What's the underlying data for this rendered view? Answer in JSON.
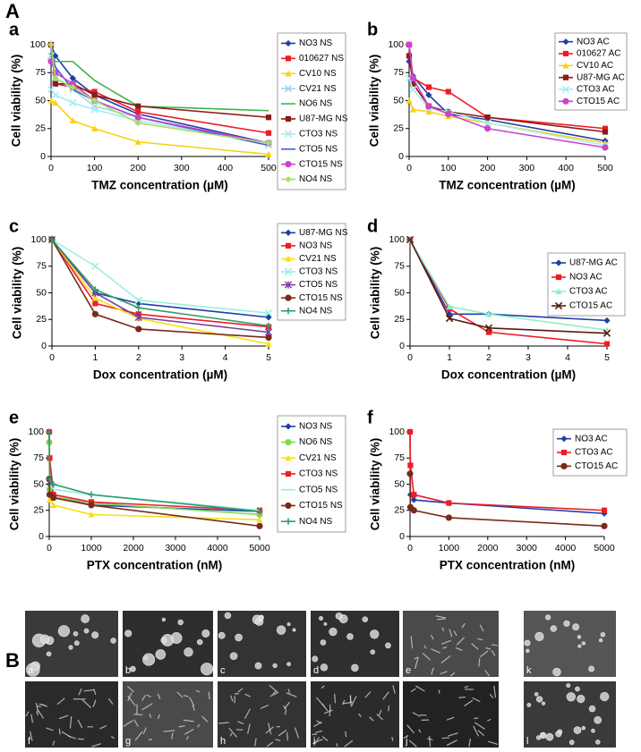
{
  "figure": {
    "label_top": "A",
    "label_bottom": "B",
    "tiles": [
      "a",
      "b",
      "c",
      "d",
      "e",
      "k",
      "f",
      "g",
      "h",
      "i",
      "j",
      "l"
    ]
  },
  "chart_data": [
    {
      "type": "line",
      "panel": "a",
      "xlabel": "TMZ concentration (µM)",
      "ylabel": "Cell viability (%)",
      "x": [
        0,
        10,
        50,
        100,
        200,
        500
      ],
      "xlim": [
        0,
        500
      ],
      "xticks": [
        0,
        100,
        200,
        300,
        400,
        500
      ],
      "ylim": [
        0,
        100
      ],
      "yticks": [
        0,
        25,
        50,
        75,
        100
      ],
      "series": [
        {
          "name": "NO3 NS",
          "color": "#1f3ea8",
          "marker": "diamond",
          "values": [
            100,
            90,
            70,
            55,
            38,
            12
          ]
        },
        {
          "name": "010627 NS",
          "color": "#ee1c25",
          "marker": "square",
          "values": [
            100,
            65,
            62,
            58,
            40,
            21
          ]
        },
        {
          "name": "CV10 NS",
          "color": "#f7d117",
          "marker": "triangle",
          "values": [
            50,
            48,
            32,
            25,
            13,
            2
          ]
        },
        {
          "name": "CV21 NS",
          "color": "#9cd9e8",
          "marker": "x",
          "values": [
            90,
            70,
            60,
            45,
            35,
            10
          ]
        },
        {
          "name": "NO6 NS",
          "color": "#3cb44b",
          "marker": "none",
          "values": [
            90,
            85,
            85,
            68,
            45,
            41
          ]
        },
        {
          "name": "U87-MG NS",
          "color": "#8b1a1a",
          "marker": "square",
          "values": [
            100,
            65,
            65,
            55,
            45,
            35
          ]
        },
        {
          "name": "CTO3 NS",
          "color": "#a7ecf2",
          "marker": "x",
          "values": [
            60,
            55,
            48,
            42,
            32,
            12
          ]
        },
        {
          "name": "CTO5 NS",
          "color": "#3a5fe0",
          "marker": "none",
          "values": [
            95,
            80,
            60,
            50,
            35,
            10
          ]
        },
        {
          "name": "CTO15 NS",
          "color": "#cc44cc",
          "marker": "circle",
          "values": [
            85,
            75,
            65,
            50,
            35,
            12
          ]
        },
        {
          "name": "NO4 NS",
          "color": "#a8e060",
          "marker": "diamond",
          "values": [
            100,
            70,
            62,
            50,
            30,
            12
          ]
        }
      ]
    },
    {
      "type": "line",
      "panel": "b",
      "xlabel": "TMZ concentration (µM)",
      "ylabel": "Cell viability (%)",
      "x": [
        0,
        10,
        50,
        100,
        200,
        500
      ],
      "xlim": [
        0,
        500
      ],
      "xticks": [
        0,
        100,
        200,
        300,
        400,
        500
      ],
      "ylim": [
        0,
        100
      ],
      "yticks": [
        0,
        25,
        50,
        75,
        100
      ],
      "series": [
        {
          "name": "NO3 AC",
          "color": "#1f3ea8",
          "marker": "diamond",
          "values": [
            85,
            72,
            55,
            38,
            33,
            14
          ]
        },
        {
          "name": "010627 AC",
          "color": "#ee1c25",
          "marker": "square",
          "values": [
            100,
            70,
            62,
            58,
            35,
            25
          ]
        },
        {
          "name": "CV10 AC",
          "color": "#f7d117",
          "marker": "triangle",
          "values": [
            50,
            42,
            40,
            36,
            30,
            12
          ]
        },
        {
          "name": "U87-MG AC",
          "color": "#8b1a1a",
          "marker": "square",
          "values": [
            90,
            65,
            45,
            40,
            35,
            22
          ]
        },
        {
          "name": "CTO3 AC",
          "color": "#a7ecf2",
          "marker": "x",
          "values": [
            70,
            60,
            43,
            40,
            30,
            10
          ]
        },
        {
          "name": "CTO15 AC",
          "color": "#cc44cc",
          "marker": "circle",
          "values": [
            100,
            70,
            45,
            38,
            25,
            8
          ]
        }
      ]
    },
    {
      "type": "line",
      "panel": "c",
      "xlabel": "Dox concentration (µM)",
      "ylabel": "Cell viability (%)",
      "x": [
        0,
        1,
        2,
        5
      ],
      "xlim": [
        0,
        5
      ],
      "xticks": [
        0,
        1,
        2,
        3,
        4,
        5
      ],
      "ylim": [
        0,
        100
      ],
      "yticks": [
        0,
        25,
        50,
        75,
        100
      ],
      "series": [
        {
          "name": "U87-MG NS",
          "color": "#1f3ea8",
          "marker": "diamond",
          "values": [
            100,
            50,
            40,
            27
          ]
        },
        {
          "name": "NO3 NS",
          "color": "#ee1c25",
          "marker": "square",
          "values": [
            100,
            40,
            30,
            18
          ]
        },
        {
          "name": "CV21 NS",
          "color": "#f7e017",
          "marker": "triangle",
          "values": [
            100,
            45,
            26,
            2
          ]
        },
        {
          "name": "CTO3 NS",
          "color": "#9af0e0",
          "marker": "x",
          "values": [
            100,
            75,
            43,
            31
          ]
        },
        {
          "name": "CTO5 NS",
          "color": "#7b3fa0",
          "marker": "star",
          "values": [
            100,
            50,
            27,
            13
          ]
        },
        {
          "name": "CTO15 NS",
          "color": "#7a2a1a",
          "marker": "circle",
          "values": [
            100,
            30,
            16,
            8
          ]
        },
        {
          "name": "NO4 NS",
          "color": "#2e9e6e",
          "marker": "plus",
          "values": [
            100,
            53,
            36,
            19
          ]
        }
      ]
    },
    {
      "type": "line",
      "panel": "d",
      "xlabel": "Dox concentration (µM)",
      "ylabel": "Cell viability (%)",
      "x": [
        0,
        1,
        2,
        5
      ],
      "xlim": [
        0,
        5
      ],
      "xticks": [
        0,
        1,
        2,
        3,
        4,
        5
      ],
      "ylim": [
        0,
        100
      ],
      "yticks": [
        0,
        25,
        50,
        75,
        100
      ],
      "series": [
        {
          "name": "U87-MG AC",
          "color": "#1f3ea8",
          "marker": "diamond",
          "values": [
            100,
            30,
            30,
            24
          ]
        },
        {
          "name": "NO3 AC",
          "color": "#ee1c25",
          "marker": "square",
          "values": [
            100,
            35,
            13,
            2
          ]
        },
        {
          "name": "CTO3 AC",
          "color": "#8ff0c8",
          "marker": "triangle",
          "values": [
            100,
            37,
            30,
            15
          ]
        },
        {
          "name": "CTO15 AC",
          "color": "#5a1a10",
          "marker": "x",
          "values": [
            100,
            26,
            17,
            12
          ]
        }
      ]
    },
    {
      "type": "line",
      "panel": "e",
      "xlabel": "PTX concentration (nM)",
      "ylabel": "Cell viability (%)",
      "x": [
        0,
        10,
        100,
        1000,
        5000
      ],
      "xlim": [
        0,
        5000
      ],
      "xticks": [
        0,
        1000,
        2000,
        3000,
        4000,
        5000
      ],
      "ylim": [
        0,
        100
      ],
      "yticks": [
        0,
        25,
        50,
        75,
        100
      ],
      "series": [
        {
          "name": "NO3 NS",
          "color": "#1f3ea8",
          "marker": "diamond",
          "values": [
            100,
            50,
            38,
            30,
            24
          ]
        },
        {
          "name": "NO6 NS",
          "color": "#7ed957",
          "marker": "circle",
          "values": [
            90,
            45,
            38,
            32,
            21
          ]
        },
        {
          "name": "CV21 NS",
          "color": "#f7e017",
          "marker": "triangle",
          "values": [
            55,
            35,
            30,
            21,
            16
          ]
        },
        {
          "name": "CTO3 NS",
          "color": "#ee1c25",
          "marker": "square",
          "values": [
            100,
            75,
            40,
            33,
            25
          ]
        },
        {
          "name": "CTO5 NS",
          "color": "#8ff0e8",
          "marker": "none",
          "values": [
            90,
            50,
            45,
            40,
            25
          ]
        },
        {
          "name": "CTO15 NS",
          "color": "#7a2a1a",
          "marker": "circle",
          "values": [
            55,
            40,
            37,
            30,
            10
          ]
        },
        {
          "name": "NO4 NS",
          "color": "#2e9e6e",
          "marker": "plus",
          "values": [
            100,
            55,
            50,
            40,
            24
          ]
        }
      ]
    },
    {
      "type": "line",
      "panel": "f",
      "xlabel": "PTX concentration (nM)",
      "ylabel": "Cell viability (%)",
      "x": [
        0,
        10,
        100,
        1000,
        5000
      ],
      "xlim": [
        0,
        5000
      ],
      "xticks": [
        0,
        1000,
        2000,
        3000,
        4000,
        5000
      ],
      "ylim": [
        0,
        100
      ],
      "yticks": [
        0,
        25,
        50,
        75,
        100
      ],
      "series": [
        {
          "name": "NO3 AC",
          "color": "#1f3ea8",
          "marker": "diamond",
          "values": [
            100,
            40,
            35,
            32,
            22
          ]
        },
        {
          "name": "CTO3 AC",
          "color": "#ee1c25",
          "marker": "square",
          "values": [
            100,
            68,
            40,
            32,
            25
          ]
        },
        {
          "name": "CTO15 AC",
          "color": "#7a2a1a",
          "marker": "circle",
          "values": [
            60,
            28,
            25,
            18,
            10
          ]
        }
      ]
    }
  ]
}
